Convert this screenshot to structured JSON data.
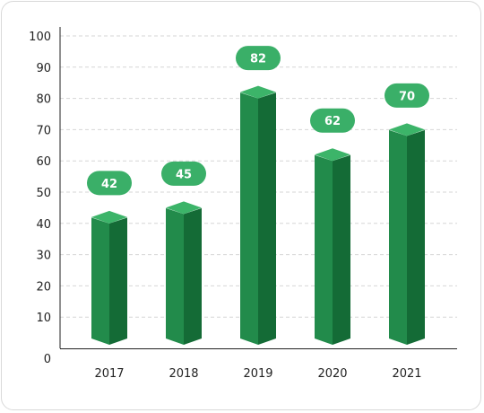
{
  "chart_data": {
    "type": "bar",
    "style": "3d-prism",
    "categories": [
      "2017",
      "2018",
      "2019",
      "2020",
      "2021"
    ],
    "values": [
      42,
      45,
      82,
      62,
      70
    ],
    "title": "",
    "xlabel": "",
    "ylabel": "",
    "ylim": [
      0,
      100
    ],
    "yticks": [
      0,
      10,
      20,
      30,
      40,
      50,
      60,
      70,
      80,
      90,
      100
    ],
    "grid": "horizontal-dashed",
    "legend": "none",
    "data_labels": "pill-above-bar",
    "colors": {
      "bar_front": "#228b4b",
      "bar_side": "#146b36",
      "bar_top": "#3cb469",
      "label_pill": "#3aaf68",
      "label_text": "#ffffff",
      "grid": "#d6d6d6",
      "axis": "#222222",
      "tick_text": "#222222"
    }
  }
}
